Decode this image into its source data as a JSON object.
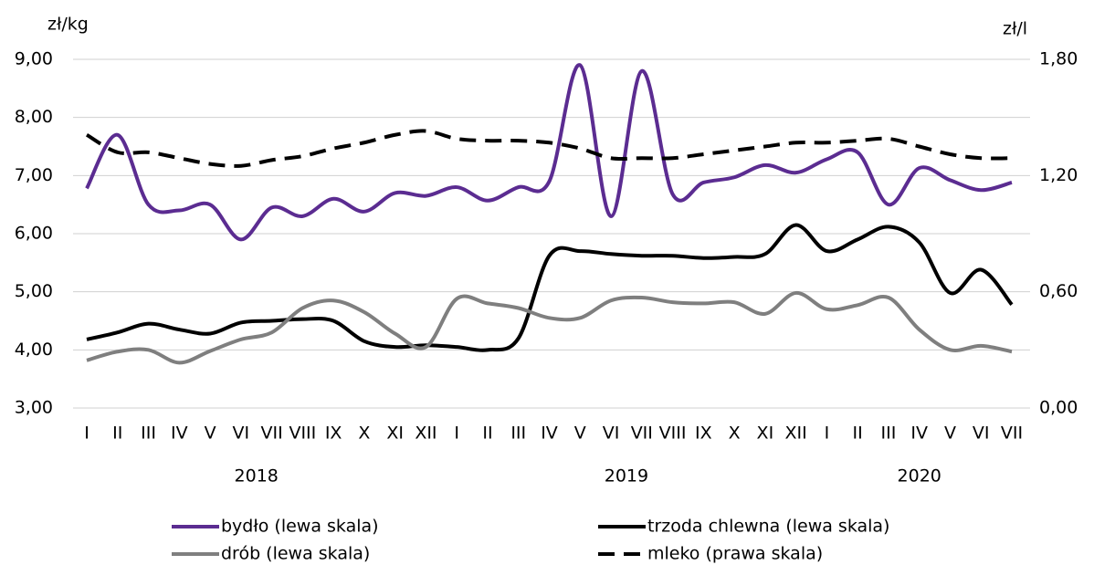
{
  "chart_data": {
    "type": "line",
    "ylabel": "zł/kg",
    "y2label": "zł/l",
    "categories": [
      "I",
      "II",
      "III",
      "IV",
      "V",
      "VI",
      "VII",
      "VIII",
      "IX",
      "X",
      "XI",
      "XII",
      "I",
      "II",
      "III",
      "IV",
      "V",
      "VI",
      "VII",
      "VIII",
      "IX",
      "X",
      "XI",
      "XII",
      "I",
      "II",
      "III",
      "IV",
      "V",
      "VI",
      "VII"
    ],
    "groups": [
      {
        "label": "2018",
        "count": 12
      },
      {
        "label": "2019",
        "count": 12
      },
      {
        "label": "2020",
        "count": 7
      }
    ],
    "ylim": [
      3,
      9
    ],
    "yticks": [
      {
        "value": 3,
        "label": "3,00"
      },
      {
        "value": 4,
        "label": "4,00"
      },
      {
        "value": 5,
        "label": "5,00"
      },
      {
        "value": 6,
        "label": "6,00"
      },
      {
        "value": 7,
        "label": "7,00"
      },
      {
        "value": 8,
        "label": "8,00"
      },
      {
        "value": 9,
        "label": "9,00"
      }
    ],
    "y2lim": [
      0,
      1.8
    ],
    "y2ticks": [
      {
        "value": 0,
        "label": "0,00"
      },
      {
        "value": 0.6,
        "label": "0,60"
      },
      {
        "value": 1.2,
        "label": "1,20"
      },
      {
        "value": 1.8,
        "label": "1,80"
      }
    ],
    "grid": true,
    "series": [
      {
        "name": "bydło (lewa skala)",
        "color": "#5b2c91",
        "line_style": "solid",
        "values": [
          6.78,
          7.7,
          6.5,
          6.4,
          6.5,
          5.9,
          6.45,
          6.3,
          6.6,
          6.38,
          6.7,
          6.65,
          6.8,
          6.57,
          6.8,
          6.9,
          8.9,
          6.3,
          8.8,
          6.68,
          6.88,
          6.97,
          7.18,
          7.05,
          7.28,
          7.4,
          6.5,
          7.13,
          6.92,
          6.75,
          6.88
        ]
      },
      {
        "name": "trzoda chlewna (lewa skala)",
        "color": "#000000",
        "line_style": "solid",
        "values": [
          4.18,
          4.3,
          4.45,
          4.35,
          4.28,
          4.47,
          4.5,
          4.53,
          4.5,
          4.15,
          4.05,
          4.08,
          4.05,
          4.0,
          4.2,
          5.62,
          5.7,
          5.65,
          5.62,
          5.62,
          5.58,
          5.6,
          5.65,
          6.15,
          5.7,
          5.9,
          6.12,
          5.85,
          4.98,
          5.38,
          4.78
        ]
      },
      {
        "name": "drób (lewa skala)",
        "color": "#7f7f7f",
        "line_style": "solid",
        "values": [
          3.82,
          3.97,
          4.0,
          3.78,
          3.98,
          4.18,
          4.3,
          4.72,
          4.85,
          4.65,
          4.28,
          4.05,
          4.88,
          4.8,
          4.72,
          4.55,
          4.55,
          4.85,
          4.9,
          4.82,
          4.8,
          4.82,
          4.62,
          4.98,
          4.7,
          4.77,
          4.9,
          4.35,
          4.0,
          4.07,
          3.97
        ]
      },
      {
        "name": "mleko (prawa skala)",
        "color": "#000000",
        "line_style": "dashed",
        "axis": "y2",
        "values": [
          1.41,
          1.32,
          1.32,
          1.29,
          1.26,
          1.25,
          1.28,
          1.3,
          1.34,
          1.37,
          1.41,
          1.43,
          1.39,
          1.38,
          1.38,
          1.37,
          1.34,
          1.29,
          1.29,
          1.29,
          1.31,
          1.33,
          1.35,
          1.37,
          1.37,
          1.38,
          1.39,
          1.35,
          1.31,
          1.29,
          1.29
        ]
      }
    ]
  }
}
